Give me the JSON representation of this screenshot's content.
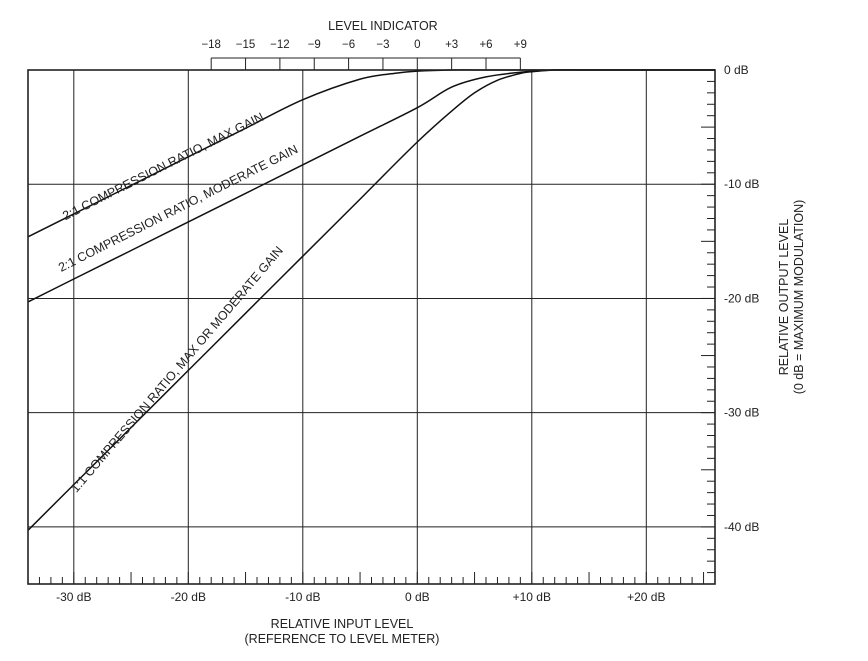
{
  "chart_data": {
    "type": "line",
    "title": "",
    "top_axis": {
      "label": "LEVEL INDICATOR",
      "ticks": [
        -18,
        -15,
        -12,
        -9,
        -6,
        -3,
        0,
        3,
        6,
        9
      ],
      "tick_labels": [
        "−18",
        "−15",
        "−12",
        "−9",
        "−6",
        "−3",
        "0",
        "+3",
        "+6",
        "+9"
      ]
    },
    "x_axis": {
      "label_line1": "RELATIVE INPUT LEVEL",
      "label_line2": "(REFERENCE TO LEVEL METER)",
      "range": [
        -34,
        26
      ],
      "major_ticks": [
        -30,
        -20,
        -10,
        0,
        10,
        20
      ],
      "major_labels": [
        "-30 dB",
        "-20 dB",
        "-10 dB",
        "0 dB",
        "+10 dB",
        "+20 dB"
      ],
      "minor_step": 1
    },
    "y_axis": {
      "label_line1": "RELATIVE OUTPUT LEVEL",
      "label_line2": "(0 dB = MAXIMUM MODULATION)",
      "range": [
        -45,
        0
      ],
      "major_ticks": [
        0,
        -10,
        -20,
        -30,
        -40
      ],
      "major_labels": [
        "0 dB",
        "-10 dB",
        "-20 dB",
        "-30 dB",
        "-40 dB"
      ],
      "minor_step": 1
    },
    "grid": true,
    "series": [
      {
        "name": "2:1 COMPRESSION RATIO, MAX GAIN",
        "x": [
          -34,
          -30,
          -25,
          -20,
          -15,
          -10,
          -5,
          -2,
          0,
          3,
          6,
          9,
          12,
          15,
          20,
          26
        ],
        "y": [
          -14.6,
          -12.6,
          -10.1,
          -7.6,
          -5.1,
          -2.6,
          -0.8,
          -0.3,
          -0.1,
          0,
          0,
          0,
          0,
          0,
          0,
          0
        ]
      },
      {
        "name": "2:1 COMPRESSION RATIO, MODERATE GAIN",
        "x": [
          -34,
          -30,
          -25,
          -20,
          -15,
          -10,
          -5,
          0,
          3,
          6,
          9,
          12,
          15,
          20,
          26
        ],
        "y": [
          -20.3,
          -18.3,
          -15.8,
          -13.3,
          -10.8,
          -8.3,
          -5.8,
          -3.3,
          -1.5,
          -0.6,
          -0.2,
          0,
          0,
          0,
          0
        ]
      },
      {
        "name": "1:1 COMPRESSION RATIO, MAX OR MODERATE GAIN",
        "x": [
          -34,
          -30,
          -25,
          -20,
          -15,
          -10,
          -5,
          0,
          3,
          5,
          7,
          9,
          10,
          12,
          14,
          16,
          20,
          26
        ],
        "y": [
          -40.3,
          -36.3,
          -31.3,
          -26.3,
          -21.3,
          -16.3,
          -11.3,
          -6.3,
          -3.6,
          -2.0,
          -0.9,
          -0.3,
          -0.15,
          0,
          0,
          0,
          0,
          0
        ]
      }
    ]
  }
}
